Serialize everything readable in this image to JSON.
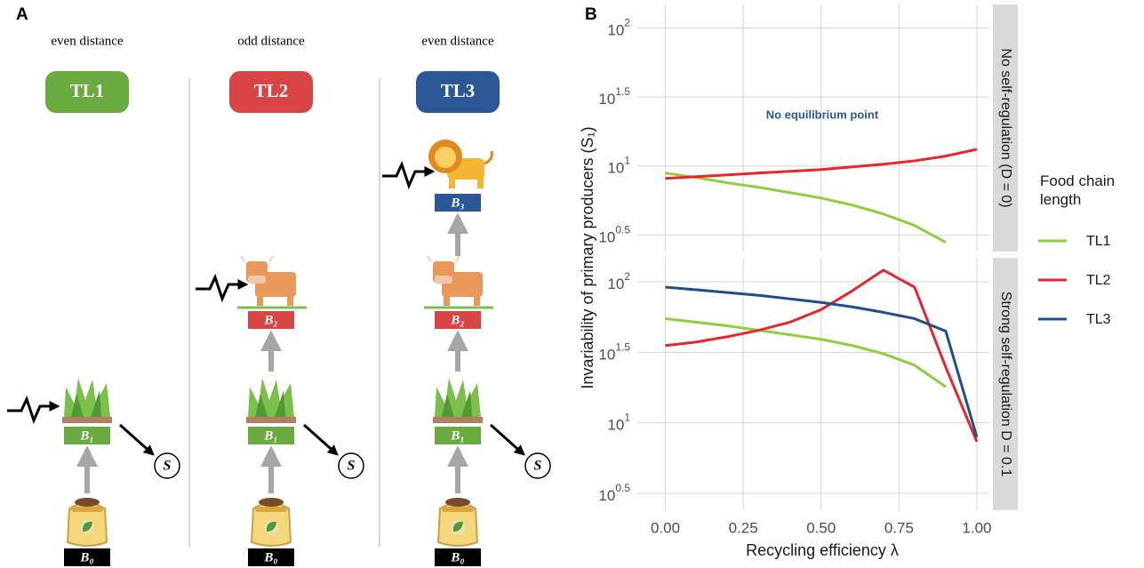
{
  "panel_labels": [
    "A",
    "B"
  ],
  "diagram": {
    "columns": [
      {
        "distance": "even distance",
        "level": "TL1",
        "boxes": [
          "B₀",
          "B₁"
        ]
      },
      {
        "distance": "odd distance",
        "level": "TL2",
        "boxes": [
          "B₀",
          "B₁",
          "B₂"
        ]
      },
      {
        "distance": "even distance",
        "level": "TL3",
        "boxes": [
          "B₀",
          "B₁",
          "B₂",
          "B₃"
        ]
      }
    ],
    "sink": "S"
  },
  "axes": {
    "xlabel": "Recycling efficiency λ",
    "ylabel": "Invariability of primary producers (S₁)"
  },
  "legend": {
    "title": "Food chain length"
  },
  "chart_data": [
    {
      "type": "line",
      "facet_label": "No self-regulation (D = 0)",
      "annotation": "No equilibrium point",
      "x": [
        0,
        0.1,
        0.2,
        0.3,
        0.4,
        0.5,
        0.6,
        0.7,
        0.8,
        0.9,
        1.0
      ],
      "series": [
        {
          "name": "TL1",
          "color": "#8fcf3c",
          "values": [
            8.89,
            8.24,
            7.55,
            7.01,
            6.41,
            5.86,
            5.21,
            4.49,
            3.71,
            2.8,
            null
          ]
        },
        {
          "name": "TL2",
          "color": "#e8262b",
          "values": [
            8.13,
            8.37,
            8.62,
            8.89,
            9.15,
            9.42,
            9.85,
            10.3,
            10.9,
            11.8,
            13.2
          ]
        }
      ],
      "xlim": [
        -0.09,
        1.04
      ],
      "ylim": [
        2.4,
        148
      ],
      "log_y": true,
      "grid": true,
      "xticks": [
        {
          "value": 0,
          "label": "0.00"
        },
        0.25,
        {
          "value": 0.5,
          "label": "0.50"
        },
        0.75,
        {
          "value": 1,
          "label": "1.00"
        }
      ],
      "yticks": [
        {
          "value": 3.162,
          "label": "10",
          "exponent": "0.5"
        },
        {
          "value": 10,
          "label": "10",
          "exponent": "1"
        },
        {
          "value": 31.62,
          "label": "10",
          "exponent": "1.5"
        },
        {
          "value": 100,
          "label": "10",
          "exponent": "2"
        }
      ]
    },
    {
      "type": "line",
      "facet_label": "Strong self-regulation D = 0.1",
      "x": [
        0,
        0.1,
        0.2,
        0.3,
        0.4,
        0.5,
        0.6,
        0.7,
        0.8,
        0.9,
        1.0
      ],
      "series": [
        {
          "name": "TL1",
          "color": "#8fcf3c",
          "values": [
            54.8,
            51.7,
            48.7,
            45.3,
            42.1,
            39.1,
            35.3,
            30.9,
            25.6,
            18.0,
            null
          ]
        },
        {
          "name": "TL2",
          "color": "#e8262b",
          "values": [
            35.3,
            37.4,
            40.8,
            45.3,
            51.7,
            63.5,
            86.3,
            121,
            91.6,
            24.8,
            7.35
          ]
        },
        {
          "name": "TL3",
          "color": "#1f4e8c",
          "values": [
            91.6,
            87.7,
            83.9,
            80.2,
            75.7,
            71.4,
            66.4,
            60.7,
            54.8,
            44.7,
            7.91
          ]
        }
      ],
      "xlim": [
        -0.09,
        1.04
      ],
      "ylim": [
        2.4,
        148
      ],
      "log_y": true,
      "grid": true,
      "xticks": [
        {
          "value": 0,
          "label": "0.00"
        },
        0.25,
        {
          "value": 0.5,
          "label": "0.50"
        },
        0.75,
        {
          "value": 1,
          "label": "1.00"
        }
      ],
      "yticks": [
        {
          "value": 3.162,
          "label": "10",
          "exponent": "0.5"
        },
        {
          "value": 10,
          "label": "10",
          "exponent": "1"
        },
        {
          "value": 31.62,
          "label": "10",
          "exponent": "1.5"
        },
        {
          "value": 100,
          "label": "10",
          "exponent": "2"
        }
      ]
    }
  ]
}
